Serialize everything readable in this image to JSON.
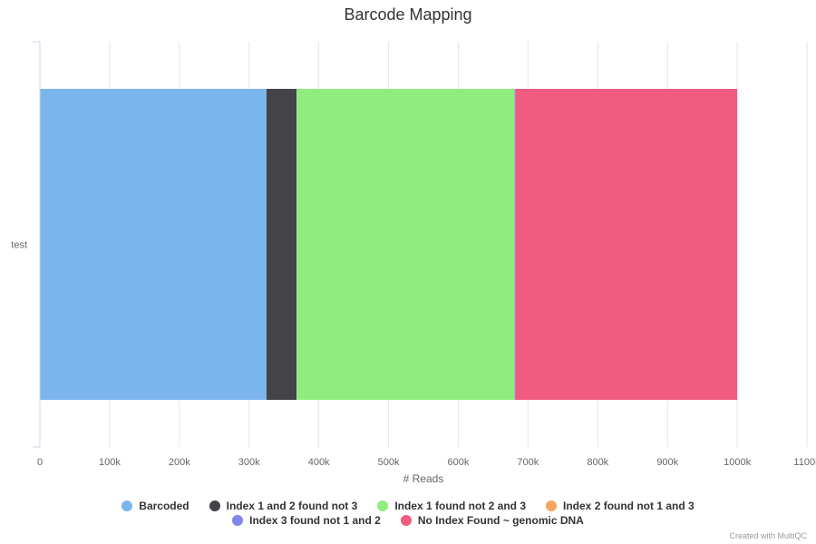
{
  "chart_data": {
    "type": "bar",
    "orientation": "horizontal",
    "stacked": true,
    "title": "Barcode Mapping",
    "xlabel": "# Reads",
    "ylabel": "",
    "categories": [
      "test"
    ],
    "xlim": [
      0,
      1100000
    ],
    "x_ticks": [
      0,
      100000,
      200000,
      300000,
      400000,
      500000,
      600000,
      700000,
      800000,
      900000,
      1000000,
      1100000
    ],
    "x_tick_labels": [
      "0",
      "100k",
      "200k",
      "300k",
      "400k",
      "500k",
      "600k",
      "700k",
      "800k",
      "900k",
      "1000k",
      "1100k"
    ],
    "grid": true,
    "legend_placement": "bottom",
    "series": [
      {
        "name": "Barcoded",
        "values": [
          325000
        ],
        "color": "#7cb5ec"
      },
      {
        "name": "Index 1 and 2 found not 3",
        "values": [
          43000
        ],
        "color": "#434348"
      },
      {
        "name": "Index 1 found not 2 and 3",
        "values": [
          312000
        ],
        "color": "#90ed7d"
      },
      {
        "name": "Index 2 found not 1 and 3",
        "values": [
          1000
        ],
        "color": "#f7a35c"
      },
      {
        "name": "Index 3 found not 1 and 2",
        "values": [
          1500
        ],
        "color": "#8085e9"
      },
      {
        "name": "No Index Found ~ genomic DNA",
        "values": [
          317500
        ],
        "color": "#f15c80"
      }
    ]
  },
  "legend_rows": [
    [
      0,
      1,
      2,
      3
    ],
    [
      4,
      5
    ]
  ],
  "credits": "Created with MultiQC"
}
